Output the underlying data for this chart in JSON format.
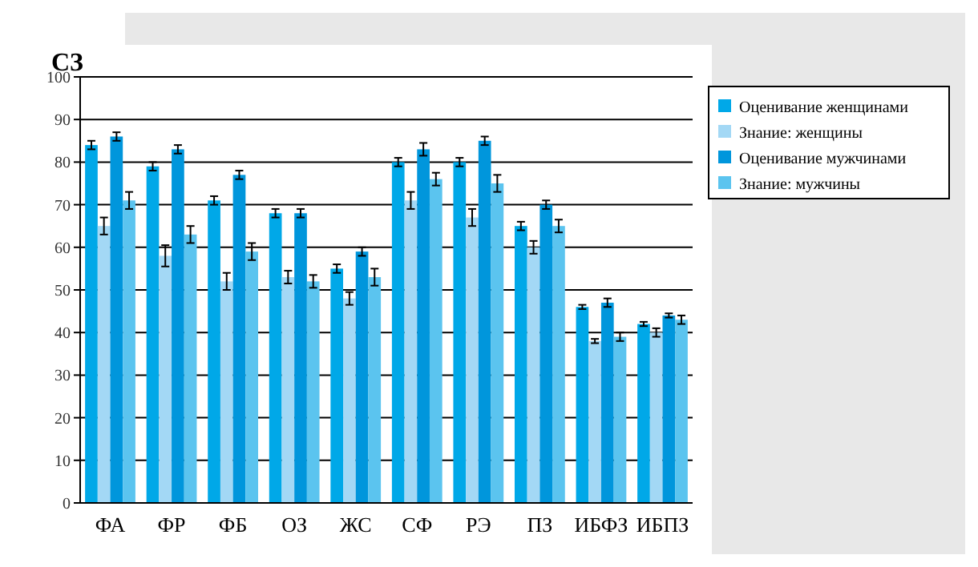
{
  "chart_data": {
    "type": "bar",
    "title": "СЗ",
    "categories": [
      "ФА",
      "ФР",
      "ФБ",
      "ОЗ",
      "ЖС",
      "СФ",
      "РЭ",
      "ПЗ",
      "ИБФЗ",
      "ИБПЗ"
    ],
    "series": [
      {
        "name": "Оценивание женщинами",
        "color": "#00a8e8",
        "values": [
          84,
          79,
          71,
          68,
          55,
          80,
          80,
          65,
          46,
          42
        ],
        "errors": [
          1,
          1,
          1,
          1,
          1,
          1,
          1,
          1,
          0.5,
          0.5
        ]
      },
      {
        "name": "Знание: женщины",
        "color": "#a3d8f5",
        "values": [
          65,
          58,
          52,
          53,
          48,
          71,
          67,
          60,
          38,
          40
        ],
        "errors": [
          2,
          2.5,
          2,
          1.5,
          1.5,
          2,
          2,
          1.5,
          0.5,
          1
        ]
      },
      {
        "name": "Оценивание мужчинами",
        "color": "#0096dc",
        "values": [
          86,
          83,
          77,
          68,
          59,
          83,
          85,
          70,
          47,
          44
        ],
        "errors": [
          1,
          1,
          1,
          1,
          1,
          1.5,
          1,
          1,
          1,
          0.5
        ]
      },
      {
        "name": "Знание: мужчины",
        "color": "#5bc4ef",
        "values": [
          71,
          63,
          59,
          52,
          53,
          76,
          75,
          65,
          39,
          43
        ],
        "errors": [
          2,
          2,
          2,
          1.5,
          2,
          1.5,
          2,
          1.5,
          1,
          1
        ]
      }
    ],
    "ylim": [
      0,
      100
    ],
    "yticks": [
      0,
      10,
      20,
      30,
      40,
      50,
      60,
      70,
      80,
      90,
      100
    ],
    "grid": "y",
    "legend": "top right"
  }
}
